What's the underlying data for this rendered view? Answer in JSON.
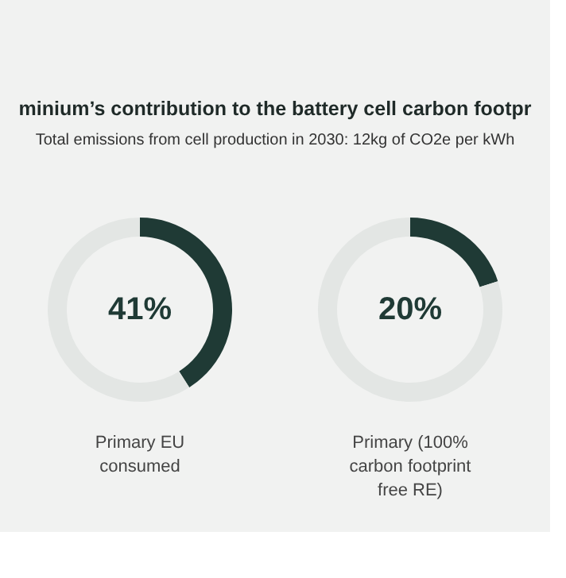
{
  "chart_data": [
    {
      "type": "donut",
      "title": "minium’s contribution to the battery cell carbon footpr",
      "subtitle": "Total emissions from cell production in 2030: 12kg of CO2e per kWh",
      "xlabel": "Primary EU consumed",
      "categories": [
        null,
        null
      ],
      "values": [
        41,
        59
      ],
      "colors": [
        "#1f3a35",
        "#e3e6e4"
      ],
      "annotations": [
        "41%"
      ]
    },
    {
      "type": "donut",
      "xlabel": "Primary (100% carbon footprint free RE)",
      "categories": [
        null,
        null
      ],
      "values": [
        20,
        80
      ],
      "colors": [
        "#1f3a35",
        "#e3e6e4"
      ],
      "annotations": [
        "20%"
      ]
    }
  ]
}
